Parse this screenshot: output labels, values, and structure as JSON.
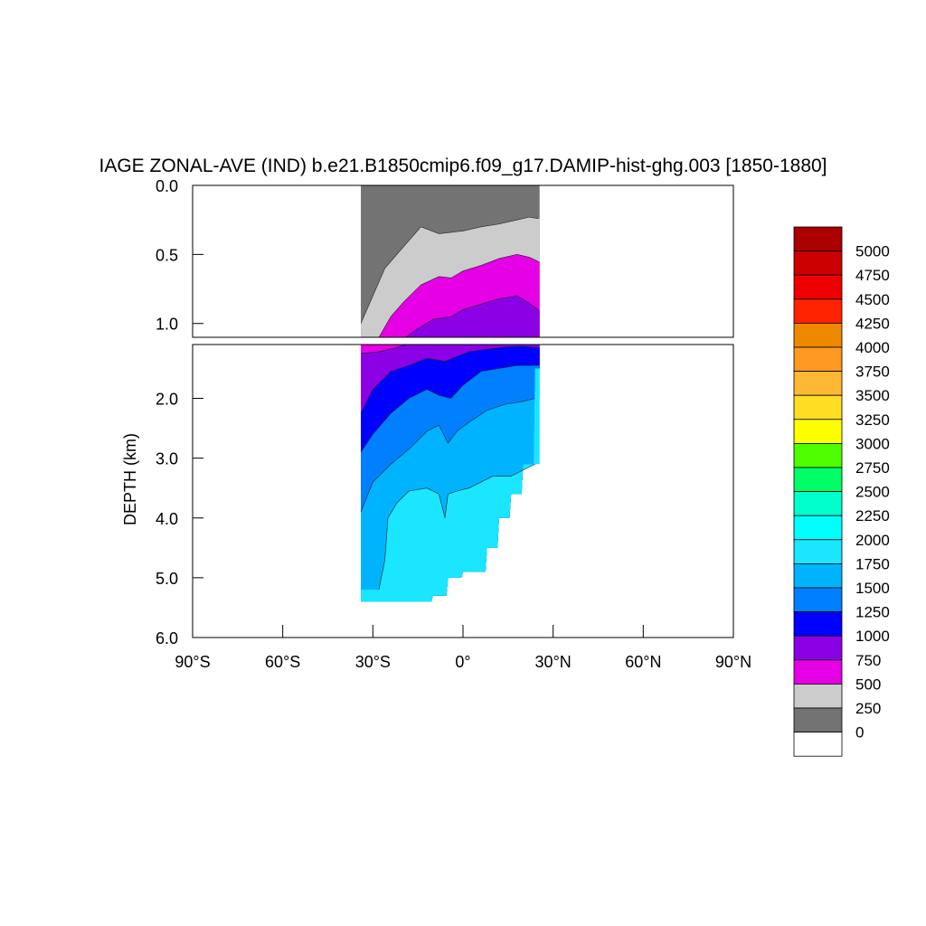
{
  "chart_data": {
    "type": "heatmap",
    "title": "IAGE ZONAL-AVE (IND) b.e21.B1850cmip6.f09_g17.DAMIP-hist-ghg.003 [1850-1880]",
    "xlabel": "",
    "ylabel": "DEPTH (km)",
    "xlim": [
      -90,
      90
    ],
    "x_ticks": [
      {
        "value": -90,
        "label": "90°S"
      },
      {
        "value": -60,
        "label": "60°S"
      },
      {
        "value": -30,
        "label": "30°S"
      },
      {
        "value": 0,
        "label": "0°"
      },
      {
        "value": 30,
        "label": "30°N"
      },
      {
        "value": 60,
        "label": "60°N"
      },
      {
        "value": 90,
        "label": "90°N"
      }
    ],
    "upper_panel": {
      "ylim": [
        0,
        1.1
      ],
      "y_ticks": [
        {
          "value": 0,
          "label": "0.0"
        },
        {
          "value": 0.5,
          "label": "0.5"
        },
        {
          "value": 1.0,
          "label": "1.0"
        }
      ]
    },
    "lower_panel": {
      "ylim": [
        1.1,
        6.0
      ],
      "y_ticks": [
        {
          "value": 2,
          "label": "2.0"
        },
        {
          "value": 3,
          "label": "3.0"
        },
        {
          "value": 4,
          "label": "4.0"
        },
        {
          "value": 5,
          "label": "5.0"
        },
        {
          "value": 6,
          "label": "6.0"
        }
      ]
    },
    "levels": [
      0,
      250,
      500,
      750,
      1000,
      1250,
      1500,
      1750,
      2000,
      2250,
      2500,
      2750,
      3000,
      3250,
      3500,
      3750,
      4000,
      4250,
      4500,
      4750,
      5000
    ],
    "colors": [
      "#ffffff",
      "#737373",
      "#cccccc",
      "#e600e6",
      "#8c00e6",
      "#0000ff",
      "#0080ff",
      "#00b3ff",
      "#1ae6ff",
      "#00ffff",
      "#00ffcc",
      "#00ff66",
      "#4dff00",
      "#ffff00",
      "#ffdd22",
      "#ffb833",
      "#ff9922",
      "#ee8800",
      "#ff2200",
      "#ee0000",
      "#cc0000",
      "#aa0000"
    ],
    "domain": {
      "lat_min": -34,
      "lat_max": 25.5
    },
    "contours": [
      {
        "level": 250,
        "points": [
          [
            -34,
            1.0
          ],
          [
            -31,
            0.85
          ],
          [
            -26,
            0.6
          ],
          [
            -20,
            0.45
          ],
          [
            -14,
            0.3
          ],
          [
            -8,
            0.35
          ],
          [
            -4,
            0.34
          ],
          [
            0,
            0.33
          ],
          [
            6,
            0.3
          ],
          [
            12,
            0.28
          ],
          [
            18,
            0.25
          ],
          [
            22,
            0.23
          ],
          [
            25,
            0.24
          ]
        ]
      },
      {
        "level": 500,
        "points": [
          [
            -28,
            1.1
          ],
          [
            -24,
            0.95
          ],
          [
            -20,
            0.85
          ],
          [
            -14,
            0.72
          ],
          [
            -8,
            0.66
          ],
          [
            -4,
            0.67
          ],
          [
            0,
            0.62
          ],
          [
            6,
            0.58
          ],
          [
            12,
            0.53
          ],
          [
            18,
            0.5
          ],
          [
            22,
            0.52
          ],
          [
            25,
            0.55
          ]
        ]
      },
      {
        "level": 750,
        "points": [
          [
            -34,
            1.25
          ],
          [
            -28,
            1.22
          ],
          [
            -22,
            1.15
          ],
          [
            -16,
            1.05
          ],
          [
            -10,
            0.97
          ],
          [
            -4,
            0.95
          ],
          [
            0,
            0.9
          ],
          [
            6,
            0.86
          ],
          [
            12,
            0.82
          ],
          [
            18,
            0.8
          ],
          [
            22,
            0.85
          ],
          [
            25,
            0.9
          ]
        ]
      },
      {
        "level": 1000,
        "points": [
          [
            -34,
            2.25
          ],
          [
            -30,
            1.85
          ],
          [
            -24,
            1.55
          ],
          [
            -18,
            1.45
          ],
          [
            -12,
            1.33
          ],
          [
            -6,
            1.38
          ],
          [
            -2,
            1.3
          ],
          [
            2,
            1.22
          ],
          [
            8,
            1.18
          ],
          [
            14,
            1.14
          ],
          [
            20,
            1.13
          ],
          [
            25,
            1.15
          ]
        ]
      },
      {
        "level": 1250,
        "points": [
          [
            -34,
            2.9
          ],
          [
            -30,
            2.6
          ],
          [
            -24,
            2.25
          ],
          [
            -18,
            2.0
          ],
          [
            -12,
            1.85
          ],
          [
            -8,
            1.95
          ],
          [
            -4,
            2.0
          ],
          [
            0,
            1.78
          ],
          [
            6,
            1.55
          ],
          [
            12,
            1.5
          ],
          [
            18,
            1.45
          ],
          [
            25,
            1.45
          ]
        ]
      },
      {
        "level": 1500,
        "points": [
          [
            -34,
            3.9
          ],
          [
            -30,
            3.4
          ],
          [
            -24,
            3.1
          ],
          [
            -18,
            2.85
          ],
          [
            -12,
            2.55
          ],
          [
            -8,
            2.45
          ],
          [
            -5,
            2.75
          ],
          [
            -2,
            2.55
          ],
          [
            2,
            2.4
          ],
          [
            8,
            2.2
          ],
          [
            14,
            2.1
          ],
          [
            20,
            2.05
          ],
          [
            24,
            2.0
          ]
        ]
      },
      {
        "level": 1750,
        "points": [
          [
            -28,
            5.2
          ],
          [
            -26,
            4.7
          ],
          [
            -25,
            4.0
          ],
          [
            -22,
            3.75
          ],
          [
            -18,
            3.55
          ],
          [
            -12,
            3.5
          ],
          [
            -8,
            3.6
          ],
          [
            -6,
            4.0
          ],
          [
            -5,
            3.6
          ],
          [
            -2,
            3.55
          ],
          [
            2,
            3.5
          ],
          [
            6,
            3.4
          ],
          [
            10,
            3.3
          ],
          [
            16,
            3.3
          ],
          [
            20,
            3.2
          ],
          [
            24,
            3.1
          ]
        ]
      }
    ]
  },
  "colorbar": {
    "labels": [
      "5000",
      "4750",
      "4500",
      "4250",
      "4000",
      "3750",
      "3500",
      "3250",
      "3000",
      "2750",
      "2500",
      "2250",
      "2000",
      "1750",
      "1500",
      "1250",
      "1000",
      "750",
      "500",
      "250",
      "0"
    ]
  }
}
